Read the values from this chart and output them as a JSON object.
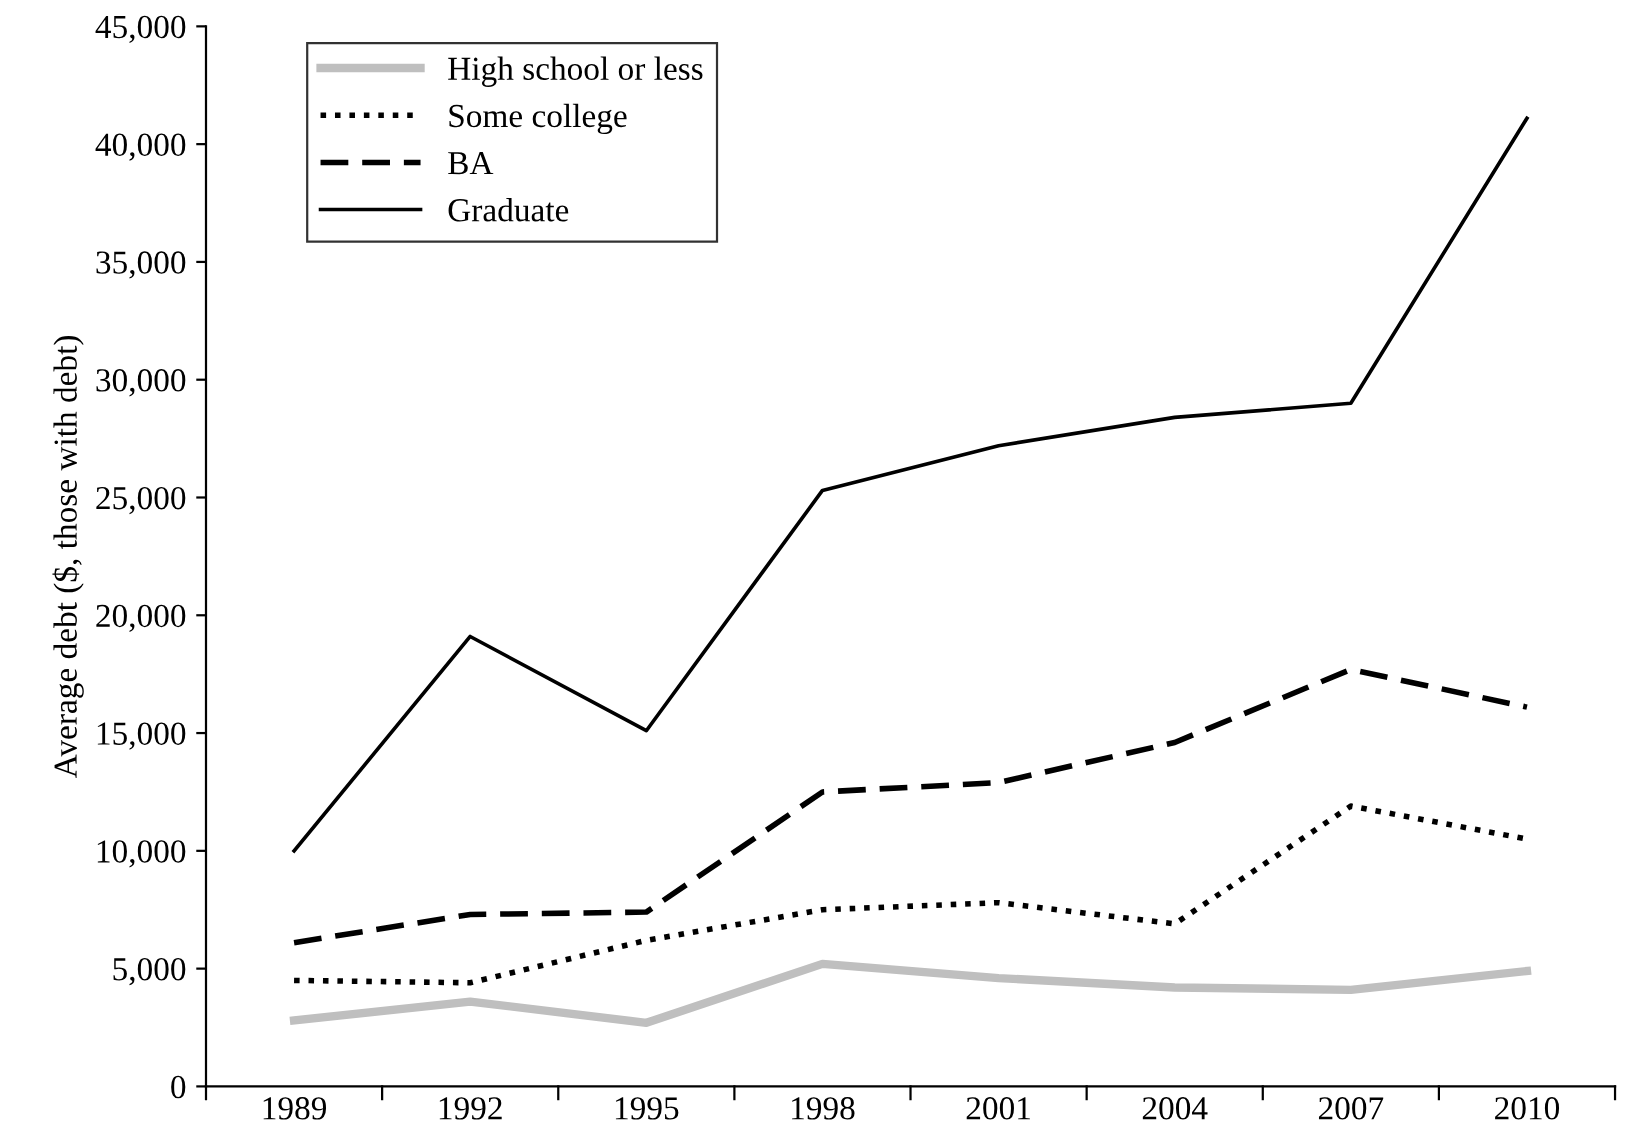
{
  "chart_data": {
    "type": "line",
    "ylabel": "Average debt ($, those with debt)",
    "categories": [
      "1989",
      "1992",
      "1995",
      "1998",
      "2001",
      "2004",
      "2007",
      "2010"
    ],
    "series": [
      {
        "name": "High school or less",
        "color": "#bfbfbf",
        "line_style": "solid",
        "values": [
          2800,
          3600,
          2700,
          5200,
          4600,
          4200,
          4100,
          4900
        ]
      },
      {
        "name": "Some college",
        "color": "#000000",
        "line_style": "dotted",
        "values": [
          4500,
          4400,
          6200,
          7500,
          7800,
          6900,
          11900,
          10500
        ]
      },
      {
        "name": "BA",
        "color": "#000000",
        "line_style": "dashed",
        "values": [
          6100,
          7300,
          7400,
          12500,
          12900,
          14600,
          17700,
          16100
        ]
      },
      {
        "name": "Graduate",
        "color": "#000000",
        "line_style": "solid",
        "values": [
          10000,
          19100,
          15100,
          25300,
          27200,
          28400,
          29000,
          41100
        ]
      }
    ],
    "ylim": [
      0,
      45000
    ],
    "yticks": [
      {
        "value": 0,
        "label": "0"
      },
      {
        "value": 5000,
        "label": "5,000"
      },
      {
        "value": 10000,
        "label": "10,000"
      },
      {
        "value": 15000,
        "label": "15,000"
      },
      {
        "value": 20000,
        "label": "20,000"
      },
      {
        "value": 25000,
        "label": "25,000"
      },
      {
        "value": 30000,
        "label": "30,000"
      },
      {
        "value": 35000,
        "label": "35,000"
      },
      {
        "value": 40000,
        "label": "40,000"
      },
      {
        "value": 45000,
        "label": "45,000"
      }
    ],
    "grid": false,
    "legend": "top left",
    "marker": "none"
  }
}
